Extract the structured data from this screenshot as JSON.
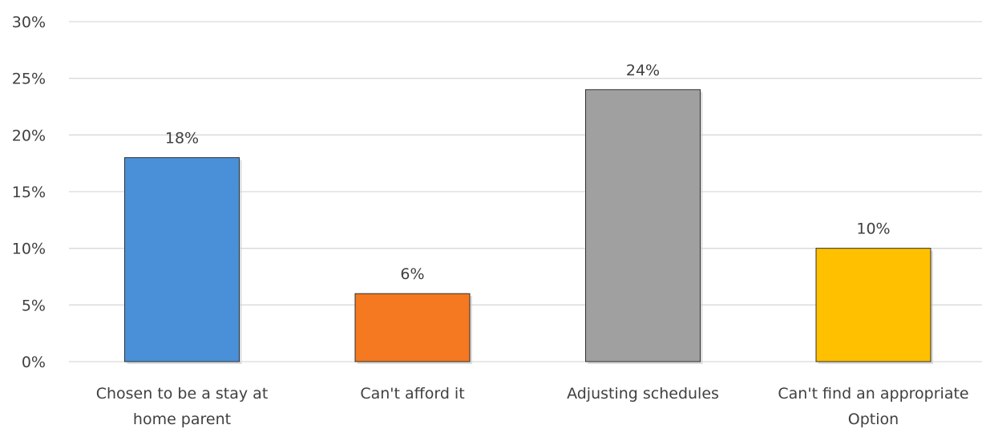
{
  "chart_data": {
    "type": "bar",
    "categories": [
      [
        "Chosen to be a stay at",
        "home parent"
      ],
      [
        "Can't afford it"
      ],
      [
        "Adjusting schedules"
      ],
      [
        "Can't find an appropriate",
        "Option"
      ]
    ],
    "values": [
      18,
      6,
      24,
      10
    ],
    "data_labels": [
      "18%",
      "6%",
      "24%",
      "10%"
    ],
    "bar_colors": [
      "#4a90d9",
      "#f47920",
      "#a0a0a0",
      "#ffc000"
    ],
    "ylim": [
      0,
      30
    ],
    "y_ticks": [
      {
        "value": 0,
        "label": "0%"
      },
      {
        "value": 5,
        "label": "5%"
      },
      {
        "value": 10,
        "label": "10%"
      },
      {
        "value": 15,
        "label": "15%"
      },
      {
        "value": 20,
        "label": "20%"
      },
      {
        "value": 25,
        "label": "25%"
      },
      {
        "value": 30,
        "label": "30%"
      }
    ],
    "grid": true,
    "legend": "none",
    "title": "",
    "xlabel": "",
    "ylabel": ""
  }
}
